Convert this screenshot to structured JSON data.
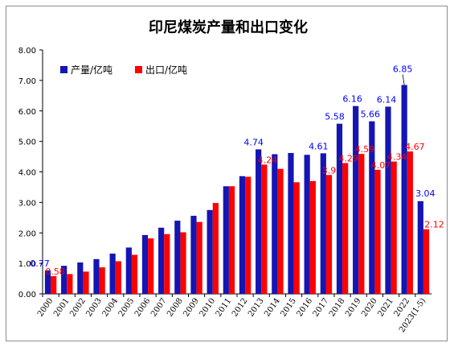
{
  "chart_data": {
    "type": "bar",
    "title": "印尼煤炭产量和出口变化",
    "categories": [
      "2000",
      "2001",
      "2002",
      "2003",
      "2004",
      "2005",
      "2006",
      "2007",
      "2008",
      "2009",
      "2010",
      "2011",
      "2012",
      "2013",
      "2014",
      "2015",
      "2016",
      "2017",
      "2018",
      "2019",
      "2020",
      "2021",
      "2022",
      "2023(1-5)"
    ],
    "series": [
      {
        "name": "产量/亿吨",
        "color": "#1515b4",
        "values": [
          0.77,
          0.92,
          1.03,
          1.14,
          1.32,
          1.52,
          1.93,
          2.17,
          2.4,
          2.56,
          2.75,
          3.53,
          3.86,
          4.74,
          4.58,
          4.62,
          4.56,
          4.61,
          5.58,
          6.16,
          5.66,
          6.14,
          6.85,
          3.04
        ]
      },
      {
        "name": "出口/亿吨",
        "color": "#ff0000",
        "values": [
          0.58,
          0.65,
          0.73,
          0.87,
          1.07,
          1.28,
          1.82,
          1.96,
          2.02,
          2.36,
          2.98,
          3.53,
          3.84,
          4.24,
          4.1,
          3.66,
          3.7,
          3.9,
          4.29,
          4.59,
          4.07,
          4.34,
          4.67,
          2.12
        ]
      }
    ],
    "data_labels": {
      "production": [
        {
          "index": 0,
          "text": "0.77"
        },
        {
          "index": 13,
          "text": "4.74"
        },
        {
          "index": 17,
          "text": "4.61"
        },
        {
          "index": 18,
          "text": "5.58"
        },
        {
          "index": 19,
          "text": "6.16"
        },
        {
          "index": 20,
          "text": "5.66"
        },
        {
          "index": 21,
          "text": "6.14"
        },
        {
          "index": 22,
          "text": "6.85"
        },
        {
          "index": 23,
          "text": "3.04"
        }
      ],
      "export": [
        {
          "index": 0,
          "text": "0.58"
        },
        {
          "index": 13,
          "text": "4.24"
        },
        {
          "index": 17,
          "text": "3.9"
        },
        {
          "index": 18,
          "text": "4.29"
        },
        {
          "index": 19,
          "text": "4.59"
        },
        {
          "index": 20,
          "text": "4.07"
        },
        {
          "index": 21,
          "text": "4.34"
        },
        {
          "index": 22,
          "text": "4.67"
        },
        {
          "index": 23,
          "text": "2.12"
        }
      ]
    },
    "ylim": [
      0,
      8
    ],
    "yticks": [
      "0.00",
      "1.00",
      "2.00",
      "3.00",
      "4.00",
      "5.00",
      "6.00",
      "7.00",
      "8.00"
    ],
    "grid": false,
    "legend_position": "top-left",
    "xlabel": "",
    "ylabel": ""
  }
}
